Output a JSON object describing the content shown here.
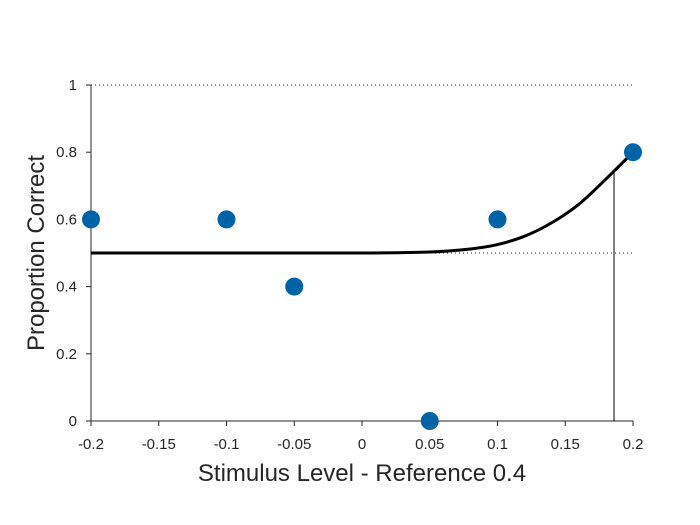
{
  "chart_data": {
    "type": "scatter",
    "xlabel": "Stimulus Level - Reference 0.4",
    "ylabel": "Proportion Correct",
    "xlim": [
      -0.2,
      0.2
    ],
    "ylim": [
      0,
      1
    ],
    "x_ticks": [
      "-0.2",
      "-0.15",
      "-0.1",
      "-0.05",
      "0",
      "0.05",
      "0.1",
      "0.15",
      "0.2"
    ],
    "y_ticks": [
      "0",
      "0.2",
      "0.4",
      "0.6",
      "0.8",
      "1"
    ],
    "marker_color": "#0063A6",
    "curve_color": "#000000",
    "grid": false,
    "reference_lines": [
      0.5,
      1.0
    ],
    "threshold_x": 0.186,
    "series": [
      {
        "type": "scatter",
        "x": [
          -0.2,
          -0.1,
          -0.05,
          0.05,
          0.1,
          0.2
        ],
        "y": [
          0.6,
          0.6,
          0.4,
          0.0,
          0.6,
          0.8
        ]
      },
      {
        "type": "line",
        "x": [
          -0.2,
          -0.1,
          0.0,
          0.05,
          0.08,
          0.1,
          0.12,
          0.14,
          0.16,
          0.18,
          0.2
        ],
        "y": [
          0.5,
          0.5,
          0.5,
          0.503,
          0.512,
          0.525,
          0.55,
          0.59,
          0.645,
          0.72,
          0.8
        ]
      }
    ]
  }
}
